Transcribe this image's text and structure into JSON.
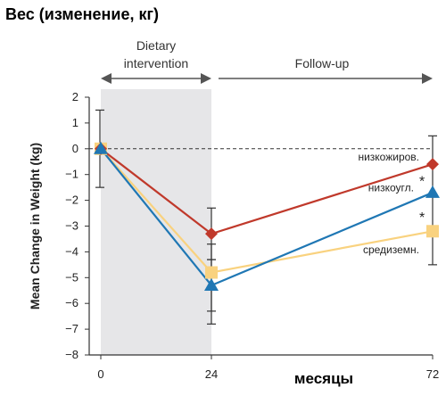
{
  "title": "Вес (изменение, кг)",
  "chart_data": {
    "type": "line",
    "ylabel": "Mean Change in Weight (kg)",
    "xlabel": "месяцы",
    "x": [
      0,
      24,
      72
    ],
    "x_ticks": [
      "0",
      "24",
      "72"
    ],
    "ylim": [
      -8,
      2
    ],
    "y_ticks": [
      "2",
      "1",
      "0",
      "−1",
      "−2",
      "−3",
      "−4",
      "−5",
      "−6",
      "−7",
      "−8"
    ],
    "phases": {
      "intervention": [
        "Dietary",
        "intervention"
      ],
      "followup": "Follow-up"
    },
    "series": [
      {
        "name": "низкожиров.",
        "color": "#c0392b",
        "marker": "diamond",
        "values": [
          0,
          -3.3,
          -0.6
        ],
        "err_24": [
          -2.3,
          -4.3
        ]
      },
      {
        "name": "низкоугл.",
        "color": "#1f77b4",
        "marker": "triangle",
        "values": [
          0,
          -5.3,
          -1.7
        ],
        "err_24": [
          -4.3,
          -6.3
        ]
      },
      {
        "name": "средиземн.",
        "color": "#f9d27f",
        "marker": "square",
        "values": [
          0,
          -4.8,
          -3.2
        ],
        "err_24": [
          -3.7,
          -6.8
        ]
      }
    ],
    "err_72": [
      0.5,
      -4.5
    ],
    "reference_line": 0,
    "grid": false,
    "annotations": [
      "*",
      "*"
    ]
  }
}
